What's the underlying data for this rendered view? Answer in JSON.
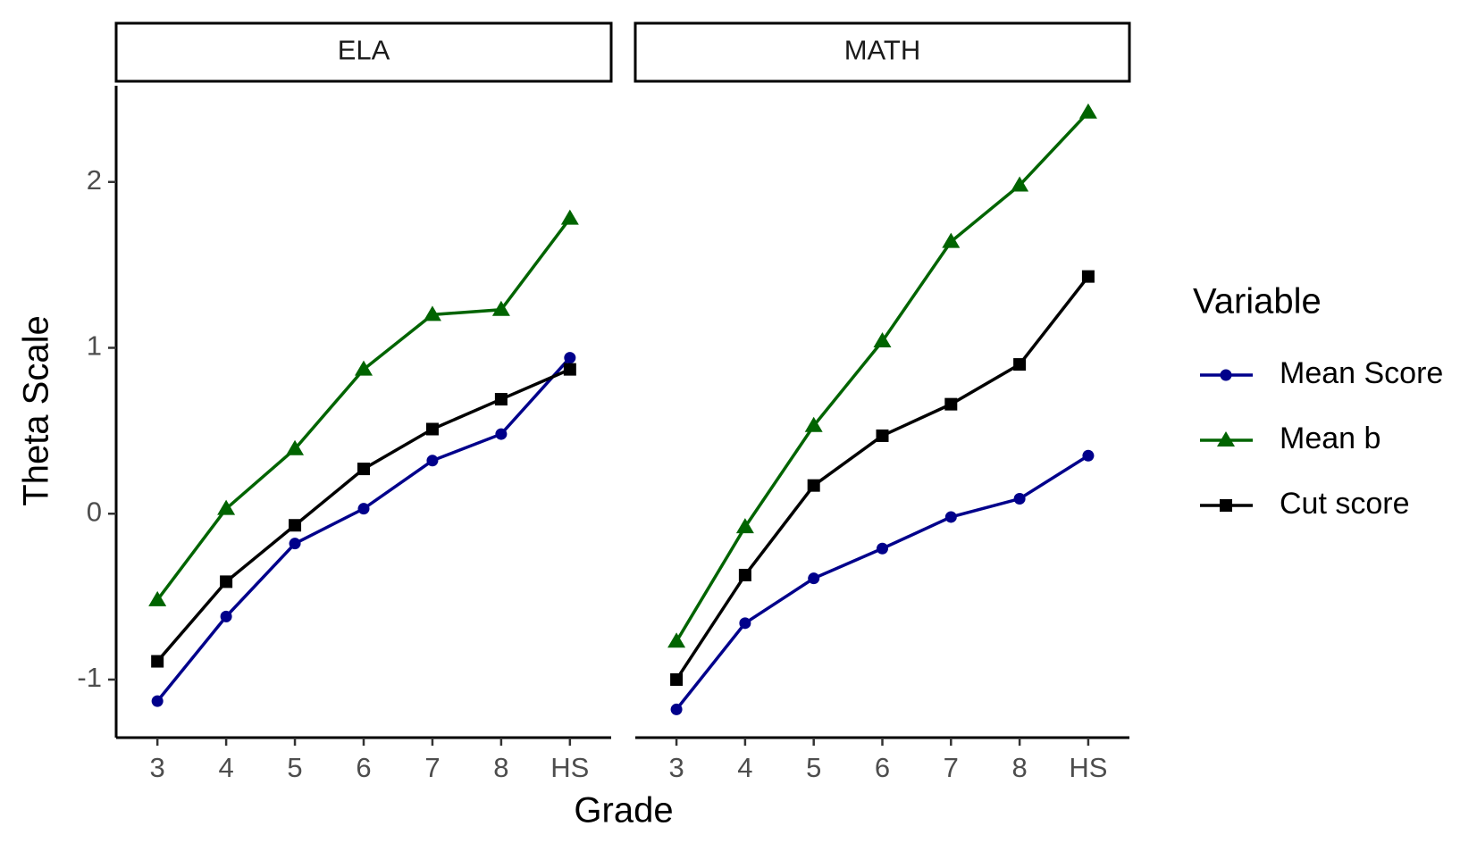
{
  "chart_data": {
    "type": "line",
    "xlabel": "Grade",
    "ylabel": "Theta Scale",
    "legend_title": "Variable",
    "facets": [
      "ELA",
      "MATH"
    ],
    "categories": [
      "3",
      "4",
      "5",
      "6",
      "7",
      "8",
      "HS"
    ],
    "ylim": [
      -1.35,
      2.58
    ],
    "yticks": [
      -1,
      0,
      1,
      2
    ],
    "legend": "right",
    "series": [
      {
        "name": "Mean Score",
        "color": "#00008b",
        "marker": "circle",
        "values": [
          [
            -1.13,
            -0.62,
            -0.18,
            0.03,
            0.32,
            0.48,
            0.94
          ],
          [
            -1.18,
            -0.66,
            -0.39,
            -0.21,
            -0.02,
            0.09,
            0.35
          ]
        ]
      },
      {
        "name": "Mean b",
        "color": "#006400",
        "marker": "triangle",
        "values": [
          [
            -0.52,
            0.03,
            0.39,
            0.87,
            1.2,
            1.23,
            1.78
          ],
          [
            -0.77,
            -0.08,
            0.53,
            1.04,
            1.64,
            1.98,
            2.42
          ]
        ]
      },
      {
        "name": "Cut score",
        "color": "#000000",
        "marker": "square",
        "values": [
          [
            -0.89,
            -0.41,
            -0.07,
            0.27,
            0.51,
            0.69,
            0.87
          ],
          [
            -1.0,
            -0.37,
            0.17,
            0.47,
            0.66,
            0.9,
            1.43
          ]
        ]
      }
    ]
  }
}
